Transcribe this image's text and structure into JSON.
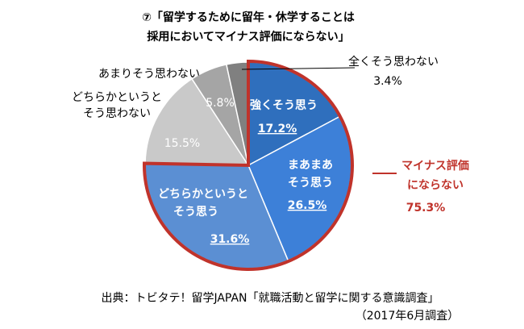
{
  "chart_data": {
    "type": "pie",
    "title": [
      "⑦「留学するために留年・休学することは",
      "採用においてマイナス評価にならない」"
    ],
    "categories": [
      [
        "強くそう思う"
      ],
      [
        "まあまあ",
        "そう思う"
      ],
      [
        "どちらかというと",
        "そう思う"
      ],
      [
        "どちらかというと",
        "そう思わない"
      ],
      [
        "あまりそう思わない"
      ],
      [
        "全くそう思わない"
      ]
    ],
    "values": [
      17.2,
      26.5,
      31.6,
      15.5,
      5.8,
      3.4
    ],
    "value_labels": [
      "17.2%",
      "26.5%",
      "31.6%",
      "15.5%",
      "5.8%",
      "3.4%"
    ],
    "colors": [
      "#2f6fbd",
      "#3d80d8",
      "#5b8fd3",
      "#c9c9c9",
      "#a5a5a5",
      "#808080"
    ],
    "annotation": {
      "lines": [
        "マイナス評価",
        "にならない"
      ],
      "value": 75.3,
      "value_label": "75.3%",
      "color": "#c0332b"
    },
    "source": [
      "出典：トビタテ！留学JAPAN「就職活動と留学に関する意識調査」",
      "（2017年6月調査）"
    ]
  }
}
